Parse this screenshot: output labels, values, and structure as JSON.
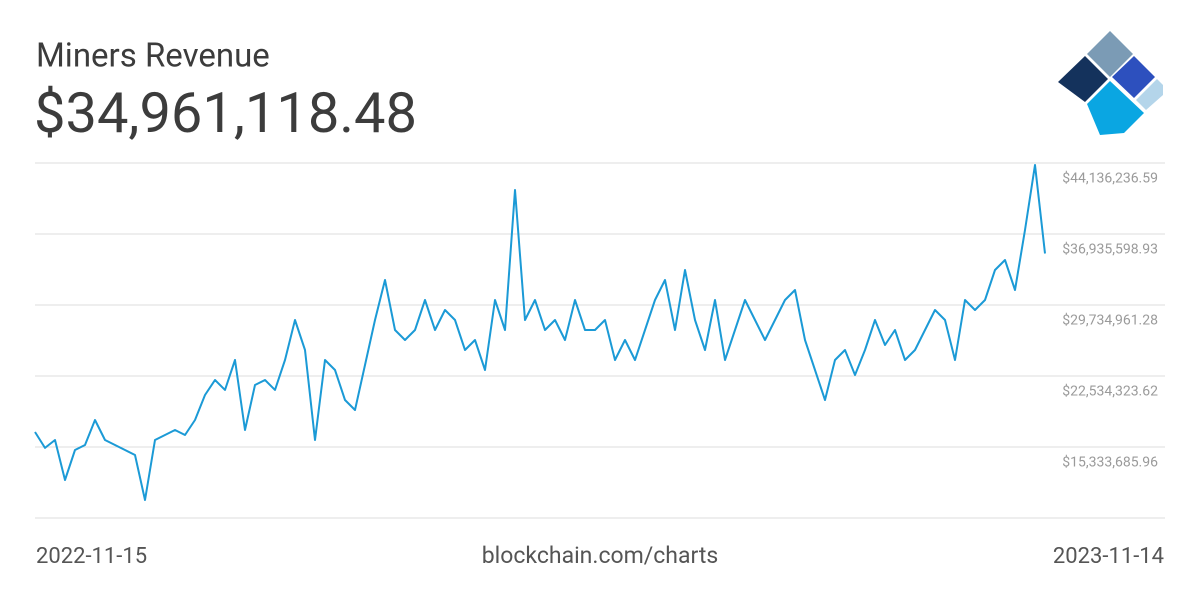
{
  "chart_data": {
    "type": "line",
    "title": "Miners Revenue",
    "subtitle": "$34,961,118.48",
    "source": "blockchain.com/charts",
    "color": "#1b9ad6",
    "grid": true,
    "categories": [
      "2022-11-15",
      null,
      null,
      null,
      null,
      null,
      null,
      null,
      null,
      null,
      null,
      null,
      null,
      null,
      null,
      null,
      null,
      null,
      null,
      null,
      null,
      null,
      null,
      null,
      null,
      null,
      null,
      null,
      null,
      null,
      null,
      null,
      null,
      null,
      null,
      null,
      null,
      null,
      null,
      null,
      null,
      null,
      null,
      null,
      null,
      null,
      null,
      null,
      null,
      null,
      null,
      null,
      null,
      null,
      null,
      null,
      null,
      null,
      null,
      null,
      null,
      null,
      null,
      null,
      null,
      null,
      null,
      null,
      null,
      null,
      null,
      null,
      null,
      null,
      null,
      null,
      null,
      null,
      null,
      null,
      null,
      null,
      null,
      null,
      null,
      null,
      null,
      null,
      null,
      null,
      null,
      null,
      null,
      null,
      null,
      null,
      null,
      null,
      null,
      null,
      null,
      "2023-11-14"
    ],
    "values": [
      16860000,
      15240000,
      16040000,
      11990000,
      15030000,
      15540000,
      18070000,
      16040000,
      15540000,
      15030000,
      14520000,
      9960000,
      16040000,
      16550000,
      17060000,
      16550000,
      18070000,
      20610000,
      22130000,
      21120000,
      24160000,
      17060000,
      21620000,
      22130000,
      21120000,
      24160000,
      28210000,
      25170000,
      16040000,
      24160000,
      23140000,
      20100000,
      19090000,
      23650000,
      28210000,
      32270000,
      27200000,
      26190000,
      27200000,
      30240000,
      27200000,
      29230000,
      28210000,
      25170000,
      26190000,
      23140000,
      30240000,
      27200000,
      41400000,
      28210000,
      30240000,
      27200000,
      28210000,
      26190000,
      30240000,
      27200000,
      27200000,
      28210000,
      24160000,
      26190000,
      24160000,
      27200000,
      30240000,
      32270000,
      27200000,
      33280000,
      28210000,
      25170000,
      30240000,
      24160000,
      27200000,
      30240000,
      28210000,
      26190000,
      28210000,
      30240000,
      31260000,
      26190000,
      23140000,
      20100000,
      24160000,
      25170000,
      22640000,
      25170000,
      28210000,
      25680000,
      27200000,
      24160000,
      25170000,
      27200000,
      29230000,
      28210000,
      24160000,
      30240000,
      29230000,
      30240000,
      33280000,
      34300000,
      31260000,
      37340000,
      43930000,
      34961118.48
    ],
    "ylim": [
      8133048.3,
      44136236.59
    ],
    "yticks": [
      {
        "value": 15333685.96,
        "label": "$15,333,685.96"
      },
      {
        "value": 22534323.62,
        "label": "$22,534,323.62"
      },
      {
        "value": 29734961.28,
        "label": "$29,734,961.28"
      },
      {
        "value": 36935598.93,
        "label": "$36,935,598.93"
      },
      {
        "value": 44136236.59,
        "label": "$44,136,236.59"
      }
    ]
  }
}
